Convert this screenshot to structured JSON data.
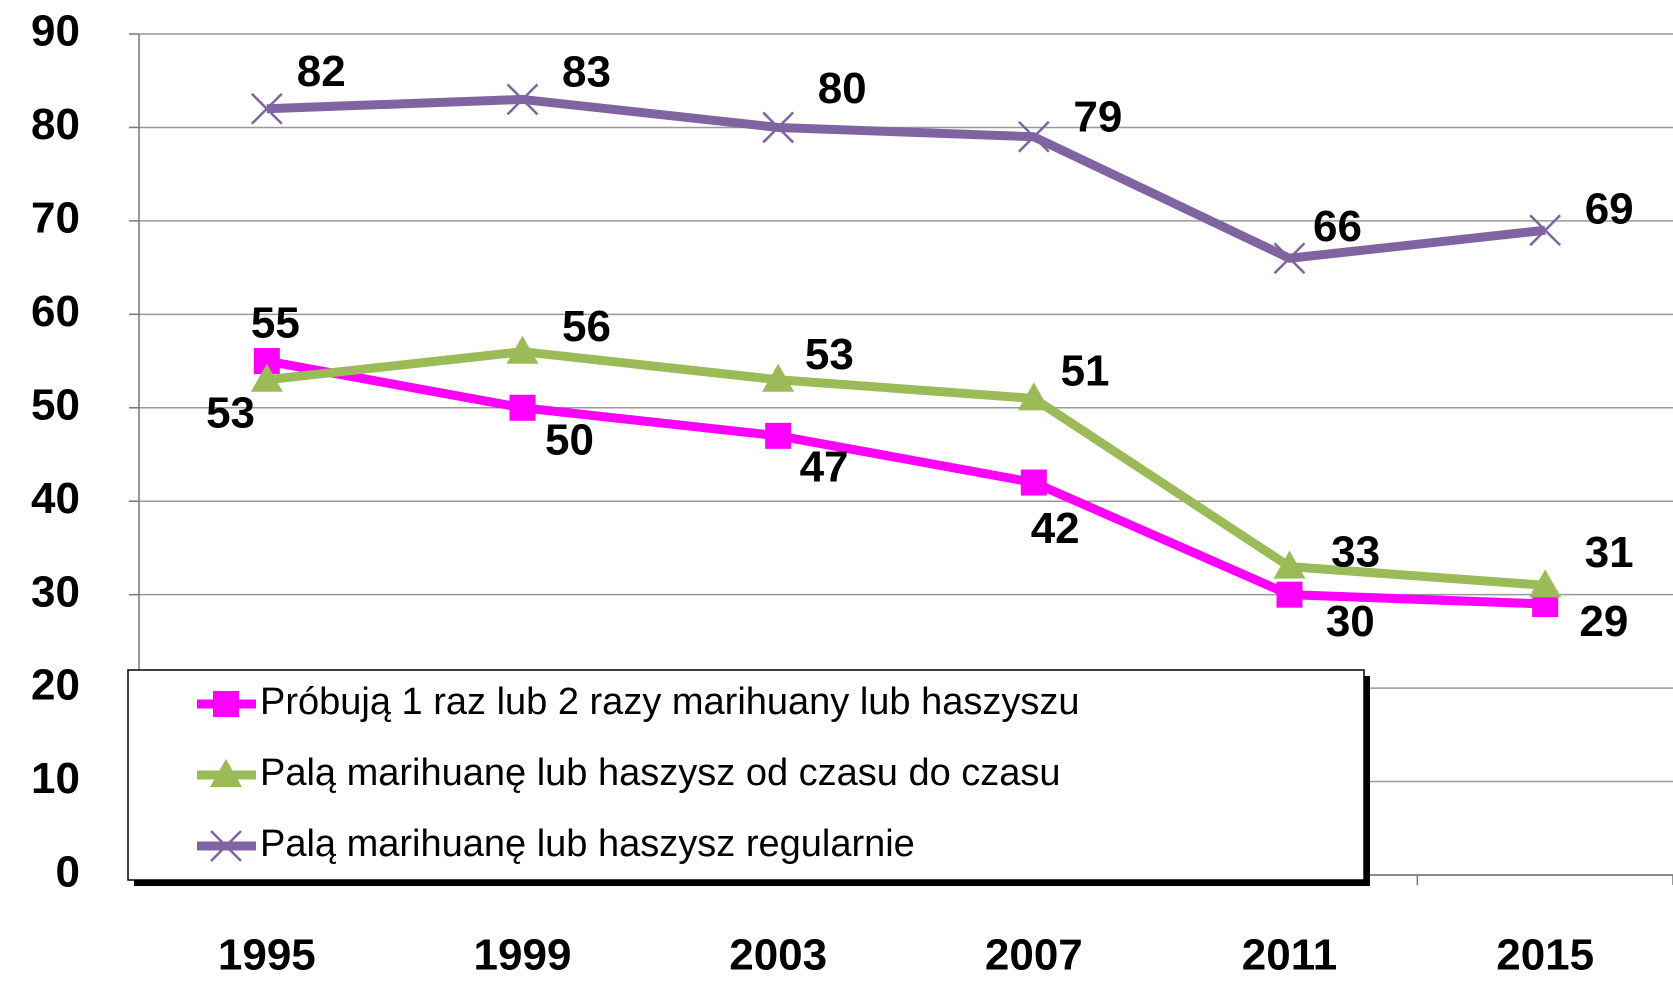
{
  "chart_data": {
    "type": "line",
    "categories": [
      "1995",
      "1999",
      "2003",
      "2007",
      "2011",
      "2015"
    ],
    "series": [
      {
        "name": "Próbują 1 raz lub 2 razy marihuany lub haszyszu",
        "color": "#ff00ff",
        "marker": "square",
        "values": [
          55,
          50,
          47,
          42,
          30,
          29
        ]
      },
      {
        "name": "Palą marihuanę lub haszysz od czasu do czasu",
        "color": "#9bbb59",
        "marker": "triangle",
        "values": [
          53,
          56,
          53,
          51,
          33,
          31
        ]
      },
      {
        "name": "Palą marihuanę lub haszysz regularnie",
        "color": "#8064a2",
        "marker": "x",
        "values": [
          82,
          83,
          80,
          79,
          66,
          69
        ]
      }
    ],
    "ylim": [
      0,
      90
    ],
    "yticks": [
      0,
      10,
      20,
      30,
      40,
      50,
      60,
      70,
      80,
      90
    ],
    "grid": true
  }
}
